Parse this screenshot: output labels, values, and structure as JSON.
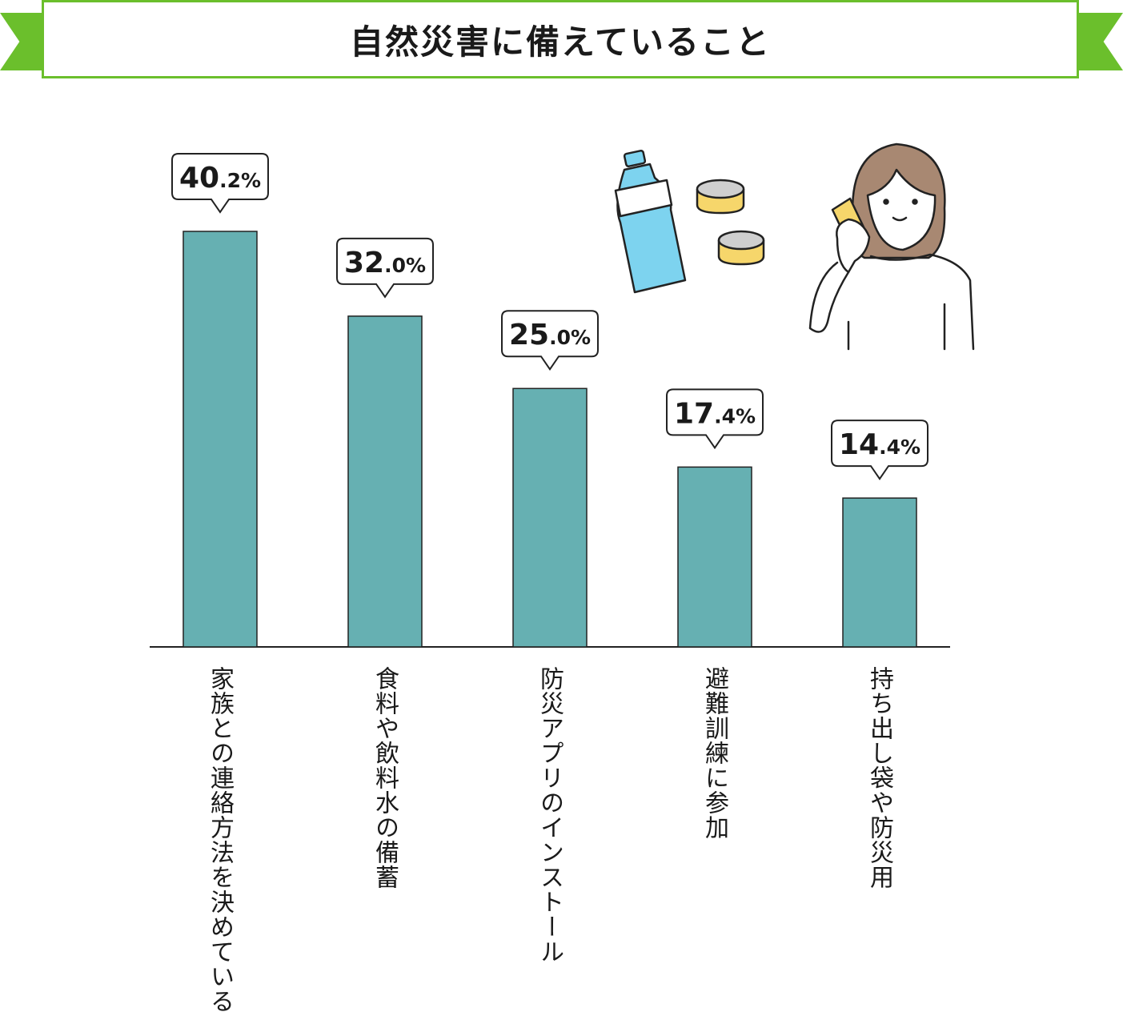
{
  "header": {
    "title": "自然災害に備えていること"
  },
  "chart_data": {
    "type": "bar",
    "title": "自然災害に備えていること",
    "categories": [
      "家族との連絡方法を決めている",
      "食料や飲料水の備蓄",
      "防災アプリのインストール",
      "避難訓練に参加",
      "持ち出し袋や防災用"
    ],
    "values": [
      40.2,
      32.0,
      25.0,
      17.4,
      14.4
    ],
    "value_labels": [
      {
        "int": "40",
        "dec": ".2%"
      },
      {
        "int": "32",
        "dec": ".0%"
      },
      {
        "int": "25",
        "dec": ".0%"
      },
      {
        "int": "17",
        "dec": ".4%"
      },
      {
        "int": "14",
        "dec": ".4%"
      }
    ],
    "unit": "%",
    "ylim": [
      0,
      40.2
    ],
    "grid": false,
    "bar_color": "#66b0b2"
  },
  "colors": {
    "accent": "#6bbf2c",
    "bar": "#66b0b2"
  },
  "illustration": {
    "icons": [
      "water-bottle-icon",
      "canned-food-icon",
      "woman-on-phone-icon"
    ]
  }
}
